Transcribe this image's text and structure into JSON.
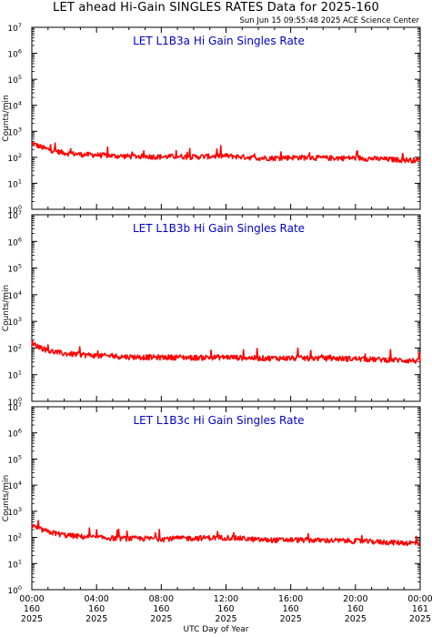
{
  "title": "LET ahead Hi-Gain SINGLES RATES Data for 2025-160",
  "timestamp": "Sun Jun 15 09:55:48 2025 ACE Science Center",
  "chart_data": {
    "type": "line",
    "title": "LET ahead Hi-Gain SINGLES RATES Data for 2025-160",
    "xlabel": "UTC Day of Year",
    "ylabel": "Counts/min",
    "yscale": "log",
    "ylim": [
      1,
      10000000
    ],
    "xlim": [
      0,
      24
    ],
    "x_unit": "hours UTC",
    "colors": {
      "line": "#ff0000",
      "panel_title": "#0000cc"
    },
    "x_ticks": [
      {
        "x": 0,
        "lines": [
          "00:00",
          "160",
          "2025"
        ]
      },
      {
        "x": 4,
        "lines": [
          "04:00",
          "160",
          "2025"
        ]
      },
      {
        "x": 8,
        "lines": [
          "08:00",
          "160",
          "2025"
        ]
      },
      {
        "x": 12,
        "lines": [
          "12:00",
          "160",
          "2025"
        ]
      },
      {
        "x": 16,
        "lines": [
          "16:00",
          "160",
          "2025"
        ]
      },
      {
        "x": 20,
        "lines": [
          "20:00",
          "160",
          "2025"
        ]
      },
      {
        "x": 24,
        "lines": [
          "00:00",
          "161",
          "2025"
        ]
      }
    ],
    "y_ticks": [
      {
        "base": "10",
        "exp": "0"
      },
      {
        "base": "10",
        "exp": "1"
      },
      {
        "base": "10",
        "exp": "2"
      },
      {
        "base": "10",
        "exp": "3"
      },
      {
        "base": "10",
        "exp": "4"
      },
      {
        "base": "10",
        "exp": "5"
      },
      {
        "base": "10",
        "exp": "6"
      },
      {
        "base": "10",
        "exp": "7"
      }
    ],
    "panels": [
      {
        "title": "LET L1B3a Hi Gain Singles Rate",
        "series": [
          {
            "x": [
              0,
              0.5,
              1,
              2,
              3,
              4,
              5,
              6,
              7,
              8,
              9,
              10,
              11,
              12,
              13,
              14,
              15,
              16,
              17,
              18,
              19,
              20,
              21,
              22,
              23,
              24
            ],
            "y": [
              350,
              260,
              200,
              150,
              130,
              125,
              115,
              110,
              110,
              105,
              110,
              105,
              110,
              115,
              105,
              95,
              95,
              100,
              100,
              95,
              95,
              95,
              90,
              85,
              80,
              78
            ]
          }
        ]
      },
      {
        "title": "LET L1B3b Hi Gain Singles Rate",
        "series": [
          {
            "x": [
              0,
              0.5,
              1,
              2,
              3,
              4,
              5,
              6,
              7,
              8,
              9,
              10,
              11,
              12,
              13,
              14,
              15,
              16,
              17,
              18,
              19,
              20,
              21,
              22,
              23,
              24
            ],
            "y": [
              160,
              110,
              80,
              62,
              58,
              52,
              50,
              47,
              46,
              45,
              46,
              44,
              45,
              46,
              44,
              42,
              42,
              42,
              42,
              42,
              41,
              40,
              38,
              37,
              35,
              33
            ]
          }
        ]
      },
      {
        "title": "LET L1B3c Hi Gain Singles Rate",
        "series": [
          {
            "x": [
              0,
              0.5,
              1,
              2,
              3,
              4,
              5,
              6,
              7,
              8,
              9,
              10,
              11,
              12,
              13,
              14,
              15,
              16,
              17,
              18,
              19,
              20,
              21,
              22,
              23,
              24
            ],
            "y": [
              280,
              210,
              165,
              125,
              110,
              100,
              95,
              92,
              92,
              90,
              93,
              95,
              98,
              100,
              92,
              82,
              80,
              82,
              80,
              78,
              76,
              74,
              70,
              66,
              63,
              60
            ]
          }
        ]
      }
    ]
  }
}
